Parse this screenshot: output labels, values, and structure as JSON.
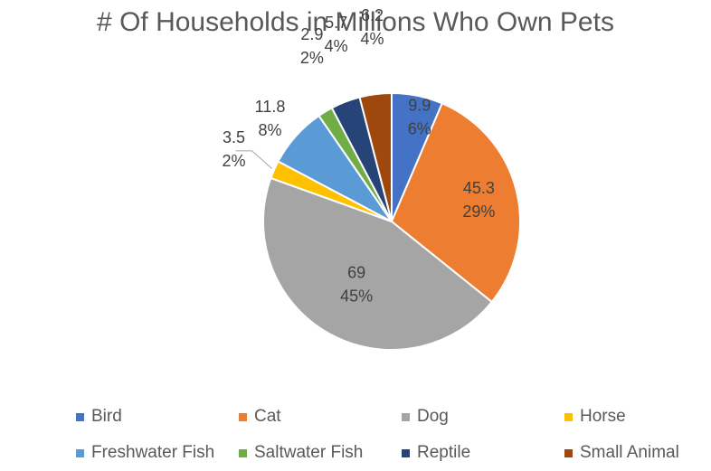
{
  "chart_data": {
    "type": "pie",
    "title": "# Of Households in Millions Who Own Pets",
    "categories": [
      "Bird",
      "Cat",
      "Dog",
      "Horse",
      "Freshwater Fish",
      "Saltwater Fish",
      "Reptile",
      "Small Animal"
    ],
    "values": [
      9.9,
      45.3,
      69,
      3.5,
      11.8,
      2.9,
      5.7,
      6.2
    ],
    "value_labels": [
      "9.9",
      "45.3",
      "69",
      "3.5",
      "11.8",
      "2.9",
      "5.7",
      "6.2"
    ],
    "percent_labels": [
      "6%",
      "29%",
      "45%",
      "2%",
      "8%",
      "2%",
      "4%",
      "4%"
    ],
    "colors": [
      "#4472C4",
      "#ED7D31",
      "#A5A5A5",
      "#FFC000",
      "#5B9BD5",
      "#70AD47",
      "#264478",
      "#9E480E"
    ],
    "legend_position": "bottom",
    "start_angle": "12 o'clock, clockwise"
  }
}
